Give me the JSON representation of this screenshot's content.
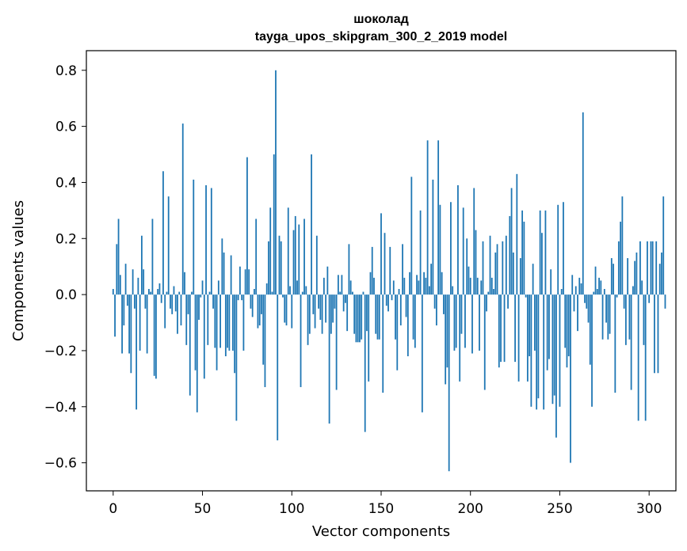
{
  "chart_data": {
    "type": "bar",
    "title": "шоколад",
    "subtitle": "tayga_upos_skipgram_300_2_2019 model",
    "xlabel": "Vector components",
    "ylabel": "Components values",
    "xlim": [
      -15,
      315
    ],
    "ylim": [
      -0.7,
      0.87
    ],
    "xticks": [
      0,
      50,
      100,
      150,
      200,
      250,
      300
    ],
    "yticks": [
      -0.6,
      -0.4,
      -0.2,
      0.0,
      0.2,
      0.4,
      0.6,
      0.8
    ],
    "xtick_labels": [
      "0",
      "50",
      "100",
      "150",
      "200",
      "250",
      "300"
    ],
    "ytick_labels": [
      "−0.6",
      "−0.4",
      "−0.2",
      "0.0",
      "0.2",
      "0.4",
      "0.6",
      "0.8"
    ],
    "bar_color": "#1f77b4",
    "values": [
      0.02,
      -0.15,
      0.18,
      0.27,
      0.07,
      -0.21,
      -0.11,
      0.11,
      -0.04,
      -0.21,
      -0.28,
      0.09,
      -0.05,
      -0.41,
      0.06,
      -0.2,
      0.21,
      0.09,
      -0.05,
      -0.21,
      0.02,
      0.01,
      0.27,
      -0.29,
      -0.3,
      0.02,
      0.04,
      -0.03,
      0.44,
      -0.12,
      0.01,
      0.35,
      -0.05,
      -0.07,
      0.03,
      -0.06,
      -0.14,
      0.01,
      -0.11,
      0.61,
      0.08,
      -0.18,
      -0.07,
      -0.36,
      0.01,
      0.41,
      -0.27,
      -0.42,
      -0.09,
      -0.01,
      0.05,
      -0.3,
      0.39,
      -0.18,
      0.01,
      0.38,
      -0.05,
      -0.19,
      -0.27,
      0.05,
      -0.19,
      0.2,
      0.15,
      -0.22,
      -0.19,
      -0.2,
      0.14,
      -0.2,
      -0.28,
      -0.45,
      -0.02,
      0.1,
      -0.02,
      -0.2,
      0.09,
      0.49,
      0.09,
      -0.05,
      -0.08,
      0.02,
      0.27,
      -0.12,
      -0.11,
      -0.07,
      -0.25,
      -0.33,
      0.04,
      0.19,
      0.31,
      0.01,
      0.5,
      0.8,
      -0.52,
      0.21,
      0.19,
      -0.01,
      -0.1,
      -0.11,
      0.31,
      0.03,
      -0.12,
      0.23,
      0.28,
      0.05,
      0.25,
      -0.33,
      0.01,
      0.27,
      0.03,
      -0.18,
      -0.14,
      0.5,
      -0.07,
      -0.12,
      0.21,
      -0.05,
      -0.09,
      -0.14,
      0.06,
      -0.1,
      0.1,
      -0.46,
      -0.14,
      -0.1,
      -0.05,
      -0.34,
      0.07,
      0.01,
      0.07,
      -0.06,
      -0.03,
      -0.13,
      0.18,
      0.05,
      0.01,
      -0.14,
      -0.17,
      -0.17,
      -0.17,
      -0.16,
      0.01,
      -0.49,
      -0.13,
      -0.31,
      0.08,
      0.17,
      0.06,
      -0.14,
      -0.16,
      -0.16,
      0.29,
      -0.35,
      0.22,
      -0.04,
      -0.06,
      0.17,
      -0.02,
      0.05,
      -0.16,
      -0.27,
      0.02,
      -0.11,
      0.18,
      0.06,
      -0.08,
      -0.22,
      0.08,
      0.42,
      -0.16,
      -0.19,
      0.07,
      0.05,
      0.3,
      -0.42,
      0.08,
      0.06,
      0.55,
      0.03,
      0.11,
      0.41,
      -0.05,
      -0.11,
      0.55,
      0.32,
      0.08,
      -0.07,
      -0.32,
      -0.26,
      -0.63,
      0.33,
      0.03,
      -0.2,
      -0.19,
      0.39,
      -0.31,
      -0.14,
      0.31,
      -0.19,
      0.2,
      0.1,
      0.06,
      -0.21,
      0.38,
      0.23,
      0.06,
      -0.2,
      0.05,
      0.19,
      -0.34,
      -0.06,
      0.01,
      0.21,
      0.06,
      0.02,
      0.15,
      0.18,
      -0.26,
      -0.24,
      0.19,
      -0.24,
      0.21,
      -0.05,
      0.28,
      0.38,
      0.15,
      -0.24,
      0.43,
      -0.31,
      0.13,
      0.3,
      0.26,
      -0.01,
      -0.31,
      -0.22,
      -0.4,
      0.11,
      -0.2,
      -0.41,
      -0.37,
      0.3,
      0.22,
      -0.41,
      0.3,
      -0.27,
      -0.23,
      0.09,
      -0.39,
      -0.36,
      -0.51,
      0.32,
      -0.4,
      0.02,
      0.33,
      -0.19,
      -0.26,
      -0.22,
      -0.6,
      0.07,
      -0.06,
      0.03,
      -0.13,
      0.06,
      0.04,
      0.65,
      -0.03,
      -0.05,
      -0.1,
      -0.25,
      -0.4,
      0.01,
      0.1,
      0.02,
      0.06,
      0.05,
      -0.16,
      0.02,
      -0.1,
      -0.16,
      -0.14,
      0.13,
      0.11,
      -0.35,
      -0.01,
      0.19,
      0.26,
      0.35,
      -0.05,
      -0.18,
      0.13,
      -0.16,
      -0.34,
      0.03,
      0.12,
      0.15,
      -0.45,
      0.19,
      0.05,
      -0.18,
      -0.45,
      0.19,
      -0.03,
      0.19,
      0.19,
      -0.28,
      0.19,
      -0.28,
      0.11,
      0.15,
      0.35,
      -0.05
    ]
  }
}
